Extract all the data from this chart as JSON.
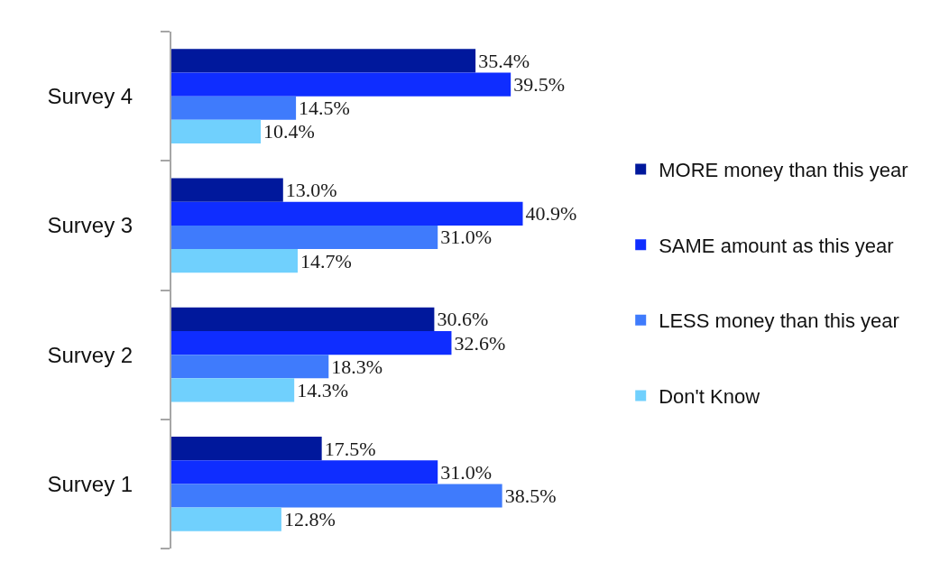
{
  "chart_data": {
    "type": "bar",
    "orientation": "horizontal",
    "tick_labels": "y",
    "legend": "right",
    "categories": [
      "Survey 4",
      "Survey 3",
      "Survey 2",
      "Survey 1"
    ],
    "series": [
      {
        "name": "MORE money than this year",
        "color": "#00189c",
        "values": [
          35.4,
          13.0,
          30.6,
          17.5
        ],
        "value_labels": [
          "35.4%",
          "13.0%",
          "30.6%",
          "17.5%"
        ]
      },
      {
        "name": "SAME amount as this year",
        "color": "#0f2dff",
        "values": [
          39.5,
          40.9,
          32.6,
          31.0
        ],
        "value_labels": [
          "39.5%",
          "40.9%",
          "32.6%",
          "31.0%"
        ]
      },
      {
        "name": "LESS money than this year",
        "color": "#3f7bfc",
        "values": [
          14.5,
          31.0,
          18.3,
          38.5
        ],
        "value_labels": [
          "14.5%",
          "31.0%",
          "18.3%",
          "38.5%"
        ]
      },
      {
        "name": "Don't Know",
        "color": "#70d0fd",
        "values": [
          10.4,
          14.7,
          14.3,
          12.8
        ],
        "value_labels": [
          "10.4%",
          "14.7%",
          "14.3%",
          "12.8%"
        ]
      }
    ]
  }
}
